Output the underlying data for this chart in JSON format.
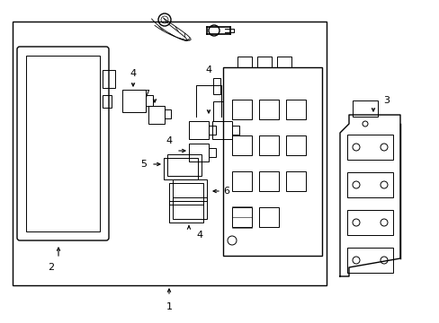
{
  "bg_color": "#ffffff",
  "line_color": "#000000",
  "lw": 1.0,
  "tlw": 0.7,
  "fig_width": 4.89,
  "fig_height": 3.6,
  "dpi": 100
}
